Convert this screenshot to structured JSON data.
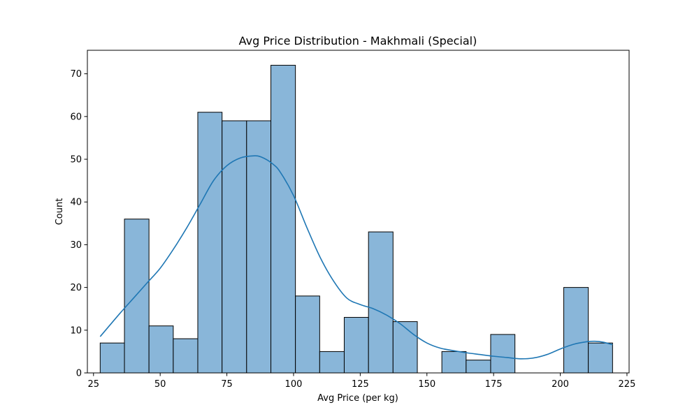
{
  "chart_data": {
    "type": "bar",
    "title": "Avg Price Distribution - Makhmali (Special)",
    "xlabel": "Avg Price (per kg)",
    "ylabel": "Count",
    "xlim": [
      22.7,
      225.8
    ],
    "ylim": [
      0,
      75.5
    ],
    "xticks": [
      25,
      50,
      75,
      100,
      125,
      150,
      175,
      200,
      225
    ],
    "yticks": [
      0,
      10,
      20,
      30,
      40,
      50,
      60,
      70
    ],
    "grid": false,
    "colors": {
      "bar_fill": "#89b6d9",
      "bar_edge": "#000000",
      "kde": "#1f77b4"
    },
    "bins": [
      {
        "x0": 27.5,
        "x1": 36.6,
        "count": 7
      },
      {
        "x0": 36.6,
        "x1": 45.8,
        "count": 36
      },
      {
        "x0": 45.8,
        "x1": 54.9,
        "count": 11
      },
      {
        "x0": 54.9,
        "x1": 64.1,
        "count": 8
      },
      {
        "x0": 64.1,
        "x1": 73.2,
        "count": 61
      },
      {
        "x0": 73.2,
        "x1": 82.4,
        "count": 59
      },
      {
        "x0": 82.4,
        "x1": 91.5,
        "count": 59
      },
      {
        "x0": 91.5,
        "x1": 100.7,
        "count": 72
      },
      {
        "x0": 100.7,
        "x1": 109.8,
        "count": 18
      },
      {
        "x0": 109.8,
        "x1": 119.0,
        "count": 5
      },
      {
        "x0": 119.0,
        "x1": 128.1,
        "count": 13
      },
      {
        "x0": 128.1,
        "x1": 137.3,
        "count": 33
      },
      {
        "x0": 137.3,
        "x1": 146.4,
        "count": 12
      },
      {
        "x0": 146.4,
        "x1": 155.6,
        "count": 0
      },
      {
        "x0": 155.6,
        "x1": 164.7,
        "count": 5
      },
      {
        "x0": 164.7,
        "x1": 173.9,
        "count": 3
      },
      {
        "x0": 173.9,
        "x1": 183.0,
        "count": 9
      },
      {
        "x0": 183.0,
        "x1": 192.2,
        "count": 0
      },
      {
        "x0": 192.2,
        "x1": 201.3,
        "count": 0
      },
      {
        "x0": 201.3,
        "x1": 210.5,
        "count": 20
      },
      {
        "x0": 210.5,
        "x1": 219.6,
        "count": 7
      }
    ],
    "kde": {
      "x": [
        27.5,
        35,
        40,
        45,
        50,
        55,
        60,
        65,
        70,
        75,
        80,
        85,
        88,
        92,
        95,
        100,
        105,
        110,
        115,
        120,
        125,
        130,
        135,
        140,
        145,
        150,
        155,
        160,
        165,
        170,
        175,
        180,
        185,
        190,
        195,
        200,
        205,
        210,
        213,
        216,
        219.6
      ],
      "y": [
        8.5,
        14,
        17.5,
        21,
        24.5,
        29,
        34,
        39.5,
        45,
        48.5,
        50.3,
        50.8,
        50.5,
        49,
        47,
        41.5,
        34,
        27,
        21.5,
        17.5,
        16,
        15,
        13.5,
        11.5,
        9,
        7,
        5.8,
        5.2,
        4.7,
        4.3,
        3.9,
        3.6,
        3.3,
        3.5,
        4.3,
        5.6,
        6.7,
        7.3,
        7.4,
        7.2,
        6.6
      ]
    }
  }
}
